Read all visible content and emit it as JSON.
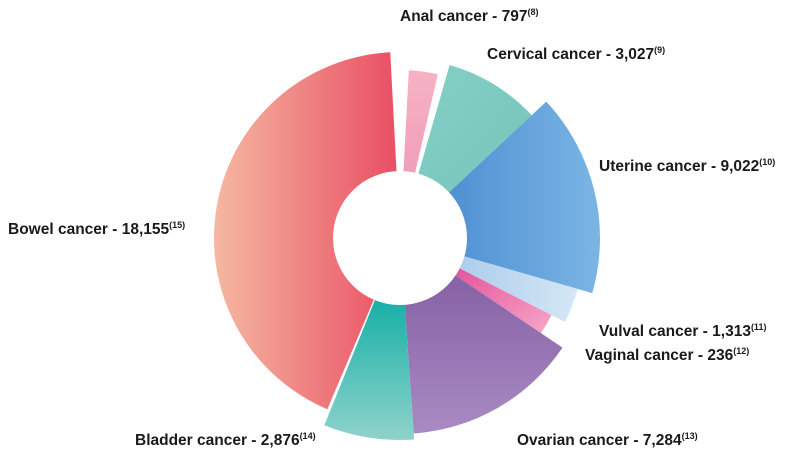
{
  "chart_data": {
    "type": "pie",
    "style": "exploded donut with varying radii",
    "slices": [
      {
        "label": "Anal cancer",
        "value": "797",
        "ref": "(8)",
        "color": "#f3a9c0"
      },
      {
        "label": "Cervical cancer",
        "value": "3,027",
        "ref": "(9)",
        "color": "#7fcbc1"
      },
      {
        "label": "Uterine cancer",
        "value": "9,022",
        "ref": "(10)",
        "color": "#5c9dd9"
      },
      {
        "label": "Vulval cancer",
        "value": "1,313",
        "ref": "(11)",
        "color": "#bcd8ef"
      },
      {
        "label": "Vaginal cancer",
        "value": "236",
        "ref": "(12)",
        "color": "#e45a9c"
      },
      {
        "label": "Ovarian cancer",
        "value": "7,284",
        "ref": "(13)",
        "color": "#8f6bab"
      },
      {
        "label": "Bladder cancer",
        "value": "2,876",
        "ref": "(14)",
        "color": "#2bb6ad"
      },
      {
        "label": "Bowel cancer",
        "value": "18,155",
        "ref": "(15)",
        "color": "#ec7574"
      }
    ],
    "separator": " - "
  }
}
